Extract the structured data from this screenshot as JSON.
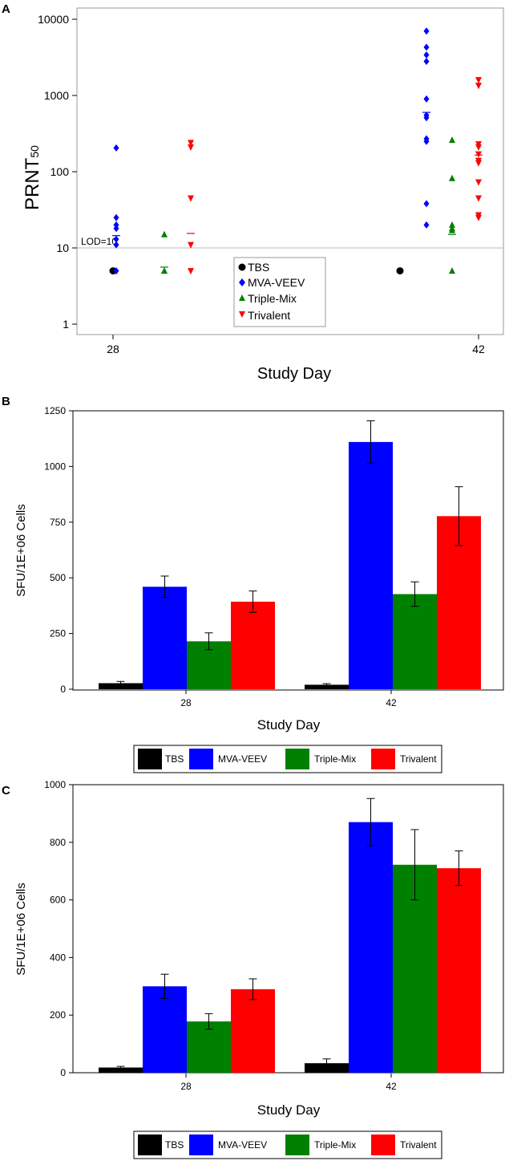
{
  "colors": {
    "TBS": "#000000",
    "MVA-VEEV": "#0000ff",
    "Triple-Mix": "#008000",
    "Trivalent": "#ff0000"
  },
  "chart_data": [
    {
      "panel": "A",
      "type": "scatter",
      "ylabel_main": "PRNT",
      "ylabel_sub": "50",
      "xlabel": "Study Day",
      "yscale": "log",
      "ylim": [
        1,
        10000
      ],
      "yticks": [
        "1",
        "10",
        "100",
        "1000",
        "10000"
      ],
      "x_ticks": [
        "28",
        "42"
      ],
      "lod_label": "LOD=10",
      "lod_value": 10,
      "legend": [
        "TBS",
        "MVA-VEEV",
        "Triple-Mix",
        "Trivalent"
      ],
      "groups": [
        {
          "day": "28",
          "series": [
            {
              "name": "TBS",
              "values": [
                5
              ],
              "mean": null
            },
            {
              "name": "MVA-VEEV",
              "values": [
                205,
                25,
                20,
                18,
                13,
                11,
                5
              ],
              "mean": 14.5
            },
            {
              "name": "Triple-Mix",
              "values": [
                15,
                5,
                5
              ],
              "mean": 5.6
            },
            {
              "name": "Trivalent",
              "values": [
                240,
                210,
                45,
                11,
                5
              ],
              "mean": 15.5
            }
          ]
        },
        {
          "day": "42",
          "series": [
            {
              "name": "TBS",
              "values": [
                5
              ],
              "mean": null
            },
            {
              "name": "MVA-VEEV",
              "values": [
                7000,
                4300,
                3400,
                2800,
                900,
                550,
                510,
                270,
                250,
                38,
                20
              ],
              "mean": 600
            },
            {
              "name": "Triple-Mix",
              "values": [
                260,
                82,
                20,
                18,
                17,
                5
              ],
              "mean": 15
            },
            {
              "name": "Trivalent",
              "values": [
                1600,
                1350,
                230,
                210,
                170,
                140,
                130,
                73,
                45,
                27,
                25
              ],
              "mean": 165
            }
          ]
        }
      ]
    },
    {
      "panel": "B",
      "type": "bar",
      "ylabel": "SFU/1E+06 Cells",
      "xlabel": "Study Day",
      "categories": [
        "28",
        "42"
      ],
      "ylim": [
        0,
        1250
      ],
      "yticks": [
        "0",
        "250",
        "500",
        "750",
        "1000",
        "1250"
      ],
      "series": [
        {
          "name": "TBS",
          "values": [
            27,
            20
          ],
          "errors": [
            8,
            5
          ]
        },
        {
          "name": "MVA-VEEV",
          "values": [
            460,
            1110
          ],
          "errors": [
            48,
            95
          ]
        },
        {
          "name": "Triple-Mix",
          "values": [
            215,
            427
          ],
          "errors": [
            38,
            55
          ]
        },
        {
          "name": "Trivalent",
          "values": [
            393,
            777
          ],
          "errors": [
            48,
            132
          ]
        }
      ]
    },
    {
      "panel": "C",
      "type": "bar",
      "ylabel": "SFU/1E+06 Cells",
      "xlabel": "Study Day",
      "categories": [
        "28",
        "42"
      ],
      "ylim": [
        0,
        1000
      ],
      "yticks": [
        "0",
        "200",
        "400",
        "600",
        "800",
        "1000"
      ],
      "series": [
        {
          "name": "TBS",
          "values": [
            18,
            33
          ],
          "errors": [
            4,
            15
          ]
        },
        {
          "name": "MVA-VEEV",
          "values": [
            300,
            870
          ],
          "errors": [
            42,
            82
          ]
        },
        {
          "name": "Triple-Mix",
          "values": [
            178,
            722
          ],
          "errors": [
            27,
            122
          ]
        },
        {
          "name": "Trivalent",
          "values": [
            290,
            710
          ],
          "errors": [
            36,
            60
          ]
        }
      ]
    }
  ]
}
